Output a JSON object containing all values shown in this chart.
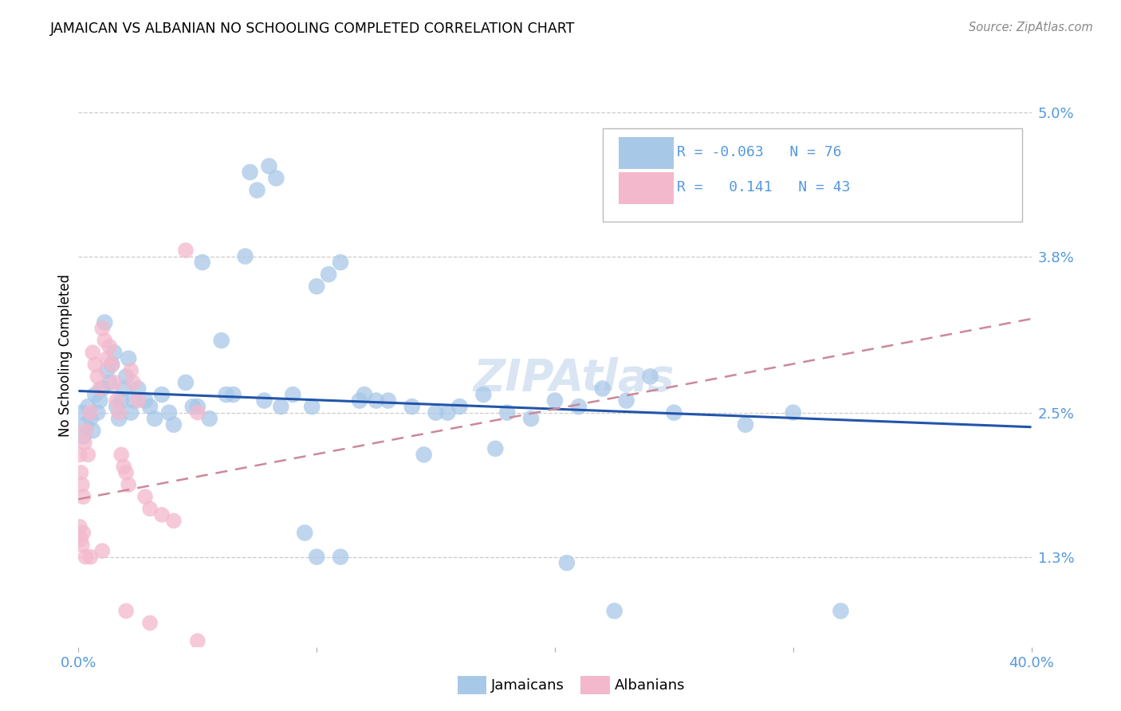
{
  "title": "JAMAICAN VS ALBANIAN NO SCHOOLING COMPLETED CORRELATION CHART",
  "source": "Source: ZipAtlas.com",
  "ylabel": "No Schooling Completed",
  "ytick_vals": [
    1.3,
    2.5,
    3.8,
    5.0
  ],
  "ytick_labels": [
    "1.3%",
    "2.5%",
    "3.8%",
    "5.0%"
  ],
  "xmin": 0.0,
  "xmax": 40.0,
  "ymin": 0.55,
  "ymax": 5.4,
  "legend_r_jamaican": "-0.063",
  "legend_n_jamaican": "76",
  "legend_r_albanian": "0.141",
  "legend_n_albanian": "43",
  "jamaican_color": "#a8c8e8",
  "albanian_color": "#f4b8cc",
  "jamaican_line_color": "#2255aa",
  "albanian_trend_color": "#cc8899",
  "tick_color": "#5599dd",
  "background_color": "#ffffff",
  "grid_color": "#cccccc",
  "jam_trend_y0": 2.68,
  "jam_trend_y1": 2.38,
  "alb_trend_y0": 1.78,
  "alb_trend_y1": 3.28,
  "jamaican_scatter": [
    [
      0.4,
      2.55
    ],
    [
      0.5,
      2.45
    ],
    [
      0.6,
      2.35
    ],
    [
      0.7,
      2.65
    ],
    [
      0.8,
      2.5
    ],
    [
      0.9,
      2.6
    ],
    [
      1.0,
      2.7
    ],
    [
      1.1,
      3.25
    ],
    [
      1.2,
      2.85
    ],
    [
      1.3,
      2.75
    ],
    [
      1.4,
      2.9
    ],
    [
      1.5,
      3.0
    ],
    [
      1.6,
      2.55
    ],
    [
      1.7,
      2.45
    ],
    [
      1.8,
      2.6
    ],
    [
      1.9,
      2.7
    ],
    [
      2.0,
      2.8
    ],
    [
      2.1,
      2.95
    ],
    [
      2.2,
      2.5
    ],
    [
      2.3,
      2.6
    ],
    [
      2.5,
      2.7
    ],
    [
      3.0,
      2.55
    ],
    [
      3.2,
      2.45
    ],
    [
      3.5,
      2.65
    ],
    [
      4.0,
      2.4
    ],
    [
      4.5,
      2.75
    ],
    [
      5.0,
      2.55
    ],
    [
      5.5,
      2.45
    ],
    [
      6.0,
      3.1
    ],
    [
      6.2,
      2.65
    ],
    [
      7.0,
      3.8
    ],
    [
      7.2,
      4.5
    ],
    [
      7.5,
      4.35
    ],
    [
      8.0,
      4.55
    ],
    [
      8.3,
      4.45
    ],
    [
      9.0,
      2.65
    ],
    [
      10.0,
      3.55
    ],
    [
      10.5,
      3.65
    ],
    [
      11.0,
      3.75
    ],
    [
      12.0,
      2.65
    ],
    [
      13.0,
      2.6
    ],
    [
      14.0,
      2.55
    ],
    [
      15.0,
      2.5
    ],
    [
      16.0,
      2.55
    ],
    [
      17.0,
      2.65
    ],
    [
      18.0,
      2.5
    ],
    [
      19.0,
      2.45
    ],
    [
      20.0,
      2.6
    ],
    [
      21.0,
      2.55
    ],
    [
      22.0,
      2.7
    ],
    [
      23.0,
      2.6
    ],
    [
      24.0,
      2.8
    ],
    [
      25.0,
      2.5
    ],
    [
      9.5,
      1.5
    ],
    [
      10.0,
      1.3
    ],
    [
      11.0,
      1.3
    ],
    [
      14.5,
      2.15
    ],
    [
      17.5,
      2.2
    ],
    [
      20.5,
      1.25
    ],
    [
      22.5,
      0.85
    ],
    [
      28.0,
      2.4
    ],
    [
      30.0,
      2.5
    ],
    [
      32.0,
      0.85
    ],
    [
      5.2,
      3.75
    ],
    [
      6.5,
      2.65
    ],
    [
      8.5,
      2.55
    ],
    [
      12.5,
      2.6
    ],
    [
      15.5,
      2.5
    ],
    [
      0.3,
      2.4
    ],
    [
      0.2,
      2.3
    ],
    [
      0.15,
      2.5
    ],
    [
      2.8,
      2.6
    ],
    [
      3.8,
      2.5
    ],
    [
      4.8,
      2.55
    ],
    [
      7.8,
      2.6
    ],
    [
      9.8,
      2.55
    ],
    [
      11.8,
      2.6
    ]
  ],
  "albanian_scatter": [
    [
      0.05,
      2.15
    ],
    [
      0.1,
      2.0
    ],
    [
      0.15,
      1.9
    ],
    [
      0.2,
      1.8
    ],
    [
      0.25,
      2.25
    ],
    [
      0.3,
      2.35
    ],
    [
      0.4,
      2.15
    ],
    [
      0.5,
      2.5
    ],
    [
      0.6,
      3.0
    ],
    [
      0.7,
      2.9
    ],
    [
      0.8,
      2.8
    ],
    [
      0.9,
      2.7
    ],
    [
      1.0,
      3.2
    ],
    [
      1.1,
      3.1
    ],
    [
      1.2,
      2.95
    ],
    [
      1.3,
      3.05
    ],
    [
      1.4,
      2.9
    ],
    [
      1.5,
      2.75
    ],
    [
      1.6,
      2.6
    ],
    [
      1.7,
      2.5
    ],
    [
      1.8,
      2.15
    ],
    [
      1.9,
      2.05
    ],
    [
      2.0,
      2.0
    ],
    [
      2.1,
      1.9
    ],
    [
      2.2,
      2.85
    ],
    [
      2.3,
      2.75
    ],
    [
      2.5,
      2.6
    ],
    [
      2.8,
      1.8
    ],
    [
      3.0,
      1.7
    ],
    [
      3.5,
      1.65
    ],
    [
      4.0,
      1.6
    ],
    [
      4.5,
      3.85
    ],
    [
      5.0,
      2.5
    ],
    [
      0.05,
      1.55
    ],
    [
      0.1,
      1.45
    ],
    [
      0.15,
      1.4
    ],
    [
      0.2,
      1.5
    ],
    [
      0.3,
      1.3
    ],
    [
      0.5,
      1.3
    ],
    [
      1.0,
      1.35
    ],
    [
      2.0,
      0.85
    ],
    [
      3.0,
      0.75
    ],
    [
      5.0,
      0.6
    ]
  ]
}
